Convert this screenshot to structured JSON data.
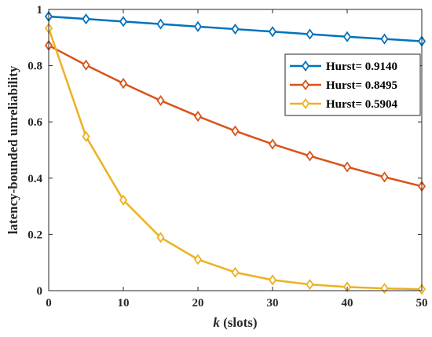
{
  "chart_data": {
    "type": "line",
    "title": "",
    "xlabel_italic": "k",
    "xlabel_rest": " (slots)",
    "ylabel": "latency-bounded unreliability",
    "xlim": [
      0,
      50
    ],
    "ylim": [
      0,
      1
    ],
    "xticks": [
      0,
      10,
      20,
      30,
      40,
      50
    ],
    "yticks": [
      0,
      0.2,
      0.4,
      0.6,
      0.8,
      1
    ],
    "ytick_labels": [
      "0",
      "0.2",
      "0.4",
      "0.6",
      "0.8",
      "1"
    ],
    "grid": false,
    "legend_position": "top-right",
    "marker": "diamond",
    "x": [
      0,
      5,
      10,
      15,
      20,
      25,
      30,
      35,
      40,
      45,
      50
    ],
    "series": [
      {
        "name": "Hurst= 0.9140",
        "color": "#0072BD",
        "values": [
          0.975,
          0.966,
          0.957,
          0.948,
          0.939,
          0.93,
          0.921,
          0.912,
          0.903,
          0.895,
          0.887
        ]
      },
      {
        "name": "Hurst= 0.8495",
        "color": "#D95319",
        "values": [
          0.872,
          0.802,
          0.737,
          0.676,
          0.62,
          0.568,
          0.521,
          0.479,
          0.44,
          0.404,
          0.371
        ]
      },
      {
        "name": "Hurst= 0.5904",
        "color": "#EDB120",
        "values": [
          0.933,
          0.548,
          0.322,
          0.189,
          0.111,
          0.065,
          0.038,
          0.022,
          0.013,
          0.008,
          0.005
        ]
      }
    ]
  }
}
